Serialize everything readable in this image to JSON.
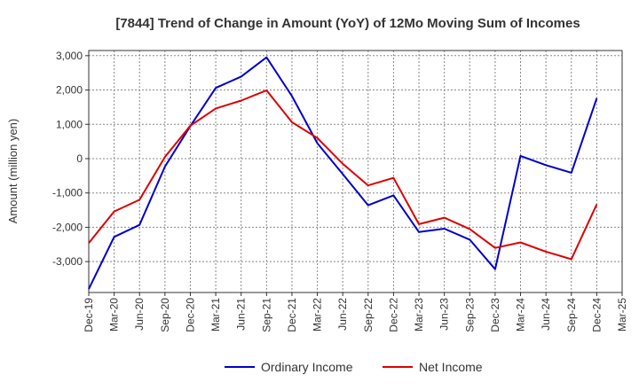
{
  "chart_data": {
    "type": "line",
    "title": "[7844]  Trend of Change in Amount (YoY) of 12Mo Moving Sum of Incomes",
    "xlabel": "",
    "ylabel": "Amount (million yen)",
    "ylim": [
      -3900,
      3150
    ],
    "yticks": [
      3000,
      2000,
      1000,
      0,
      -1000,
      -2000,
      -3000
    ],
    "ytick_labels": [
      "3,000",
      "2,000",
      "1,000",
      "0",
      "-1,000",
      "-2,000",
      "-3,000"
    ],
    "categories": [
      "Dec-19",
      "Mar-20",
      "Jun-20",
      "Sep-20",
      "Dec-20",
      "Mar-21",
      "Jun-21",
      "Sep-21",
      "Dec-21",
      "Mar-22",
      "Jun-22",
      "Sep-22",
      "Dec-22",
      "Mar-23",
      "Jun-23",
      "Sep-23",
      "Dec-23",
      "Mar-24",
      "Jun-24",
      "Sep-24",
      "Dec-24",
      "Mar-25"
    ],
    "grid": true,
    "legend_position": "bottom",
    "series": [
      {
        "name": "Ordinary Income",
        "color": "#0000cc",
        "values": [
          -3800,
          -2280,
          -1930,
          -230,
          950,
          2060,
          2390,
          2950,
          1820,
          450,
          -450,
          -1360,
          -1070,
          -2140,
          -2040,
          -2360,
          -3220,
          80,
          -190,
          -410,
          1760,
          null
        ]
      },
      {
        "name": "Net Income",
        "color": "#dd0000",
        "values": [
          -2460,
          -1540,
          -1200,
          50,
          960,
          1460,
          1690,
          1990,
          1060,
          600,
          -150,
          -780,
          -560,
          -1910,
          -1720,
          -2050,
          -2600,
          -2440,
          -2710,
          -2930,
          -1330,
          null
        ]
      }
    ]
  }
}
